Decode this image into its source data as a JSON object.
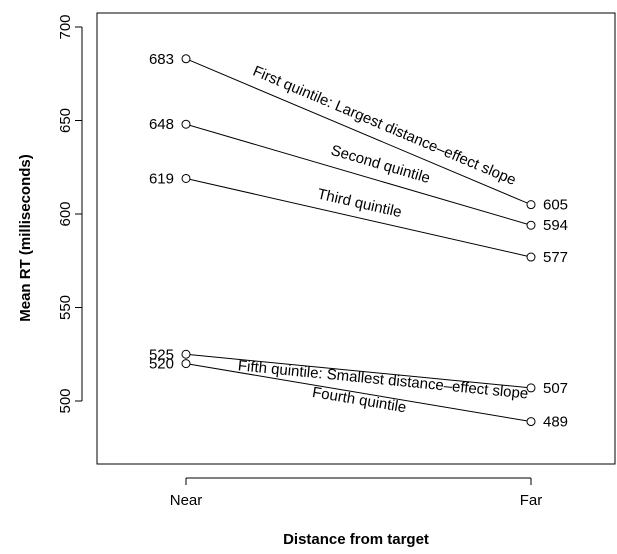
{
  "chart_data": {
    "type": "line",
    "title": "",
    "xlabel": "Distance from target",
    "ylabel": "Mean RT (milliseconds)",
    "categories": [
      "Near",
      "Far"
    ],
    "yticks": [
      "500",
      "550",
      "600",
      "650",
      "700"
    ],
    "ylim": [
      460,
      710
    ],
    "grid": false,
    "series": [
      {
        "name": "First quintile: Largest distance–effect slope",
        "values": [
          683,
          605
        ]
      },
      {
        "name": "Second quintile",
        "values": [
          648,
          594
        ]
      },
      {
        "name": "Third quintile",
        "values": [
          619,
          577
        ]
      },
      {
        "name": "Fifth quintile: Smallest distance–effect slope",
        "values": [
          525,
          507
        ]
      },
      {
        "name": "Fourth quintile",
        "values": [
          520,
          489
        ]
      }
    ],
    "point_labels": [
      [
        "683",
        "605"
      ],
      [
        "648",
        "594"
      ],
      [
        "619",
        "577"
      ],
      [
        "525",
        "507"
      ],
      [
        "520",
        "489"
      ]
    ]
  }
}
